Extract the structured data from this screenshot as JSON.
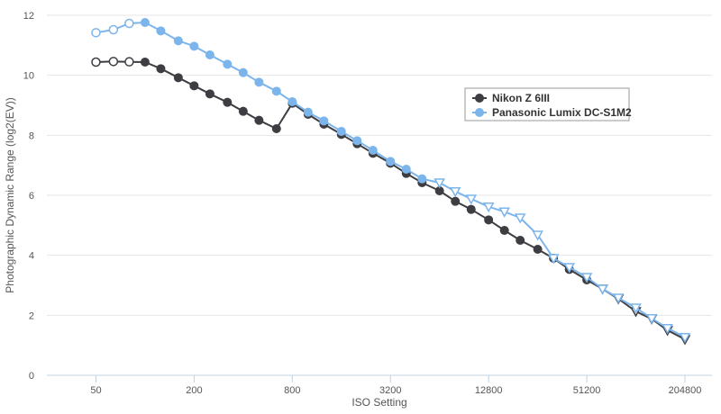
{
  "chart_data": {
    "type": "line",
    "title": "",
    "xlabel": "ISO Setting",
    "ylabel": "Photographic Dynamic Range (log2(EV))",
    "x_scale": "log2",
    "x_ticks": [
      50,
      200,
      800,
      3200,
      12800,
      51200,
      204800
    ],
    "x_tick_labels": [
      "50",
      "200",
      "800",
      "3200",
      "12800",
      "51200",
      "204800"
    ],
    "xlim": [
      25,
      300000
    ],
    "ylim": [
      0,
      12
    ],
    "y_ticks": [
      0,
      2,
      4,
      6,
      8,
      10,
      12
    ],
    "grid": "horizontal",
    "legend_position": "right",
    "series": [
      {
        "name": "Nikon Z 6III",
        "color": "#3d3d42",
        "x": [
          50,
          64,
          80,
          100,
          125,
          160,
          200,
          250,
          320,
          400,
          500,
          640,
          800,
          1000,
          1250,
          1600,
          2000,
          2500,
          3200,
          4000,
          5000,
          6400,
          8000,
          10000,
          12800,
          16000,
          20000,
          25600,
          32000,
          40000,
          51200,
          64000,
          80000,
          102400,
          128000,
          160000,
          204800
        ],
        "y": [
          10.44,
          10.46,
          10.45,
          10.44,
          10.22,
          9.92,
          9.65,
          9.38,
          9.1,
          8.8,
          8.5,
          8.22,
          9.07,
          8.7,
          8.37,
          8.03,
          7.72,
          7.4,
          7.07,
          6.73,
          6.42,
          6.15,
          5.8,
          5.53,
          5.18,
          4.83,
          4.5,
          4.2,
          3.9,
          3.53,
          3.18,
          2.88,
          2.55,
          2.13,
          1.88,
          1.5,
          1.2
        ],
        "markers": [
          "open-circle",
          "open-circle",
          "open-circle",
          "circle",
          "circle",
          "circle",
          "circle",
          "circle",
          "circle",
          "circle",
          "circle",
          "circle",
          "circle",
          "circle",
          "circle",
          "circle",
          "circle",
          "circle",
          "circle",
          "circle",
          "circle",
          "circle",
          "circle",
          "circle",
          "circle",
          "circle",
          "circle",
          "circle",
          "circle",
          "circle",
          "circle",
          "open-triangle",
          "open-triangle",
          "open-triangle",
          "open-triangle",
          "open-triangle",
          "open-triangle"
        ]
      },
      {
        "name": "Panasonic Lumix DC-S1M2",
        "color": "#7cb5ec",
        "x": [
          50,
          64,
          80,
          100,
          125,
          160,
          200,
          250,
          320,
          400,
          500,
          640,
          800,
          1000,
          1250,
          1600,
          2000,
          2500,
          3200,
          4000,
          5000,
          6400,
          8000,
          10000,
          12800,
          16000,
          20000,
          25600,
          32000,
          40000,
          51200,
          64000,
          80000,
          102400,
          128000,
          160000,
          204800
        ],
        "y": [
          11.42,
          11.52,
          11.73,
          11.76,
          11.48,
          11.15,
          10.97,
          10.68,
          10.37,
          10.09,
          9.77,
          9.47,
          9.12,
          8.77,
          8.48,
          8.13,
          7.82,
          7.5,
          7.13,
          6.87,
          6.55,
          6.42,
          6.13,
          5.88,
          5.62,
          5.45,
          5.25,
          4.68,
          3.9,
          3.6,
          3.27,
          2.88,
          2.58,
          2.25,
          1.9,
          1.57,
          1.27
        ],
        "markers": [
          "open-circle",
          "open-circle",
          "open-circle",
          "circle",
          "circle",
          "circle",
          "circle",
          "circle",
          "circle",
          "circle",
          "circle",
          "circle",
          "circle",
          "circle",
          "circle",
          "circle",
          "circle",
          "circle",
          "circle",
          "circle",
          "circle",
          "open-triangle",
          "open-triangle",
          "open-triangle",
          "open-triangle",
          "open-triangle",
          "open-triangle",
          "open-triangle",
          "open-triangle",
          "open-triangle",
          "open-triangle",
          "open-triangle",
          "open-triangle",
          "open-triangle",
          "open-triangle",
          "open-triangle",
          "open-triangle"
        ]
      }
    ]
  }
}
